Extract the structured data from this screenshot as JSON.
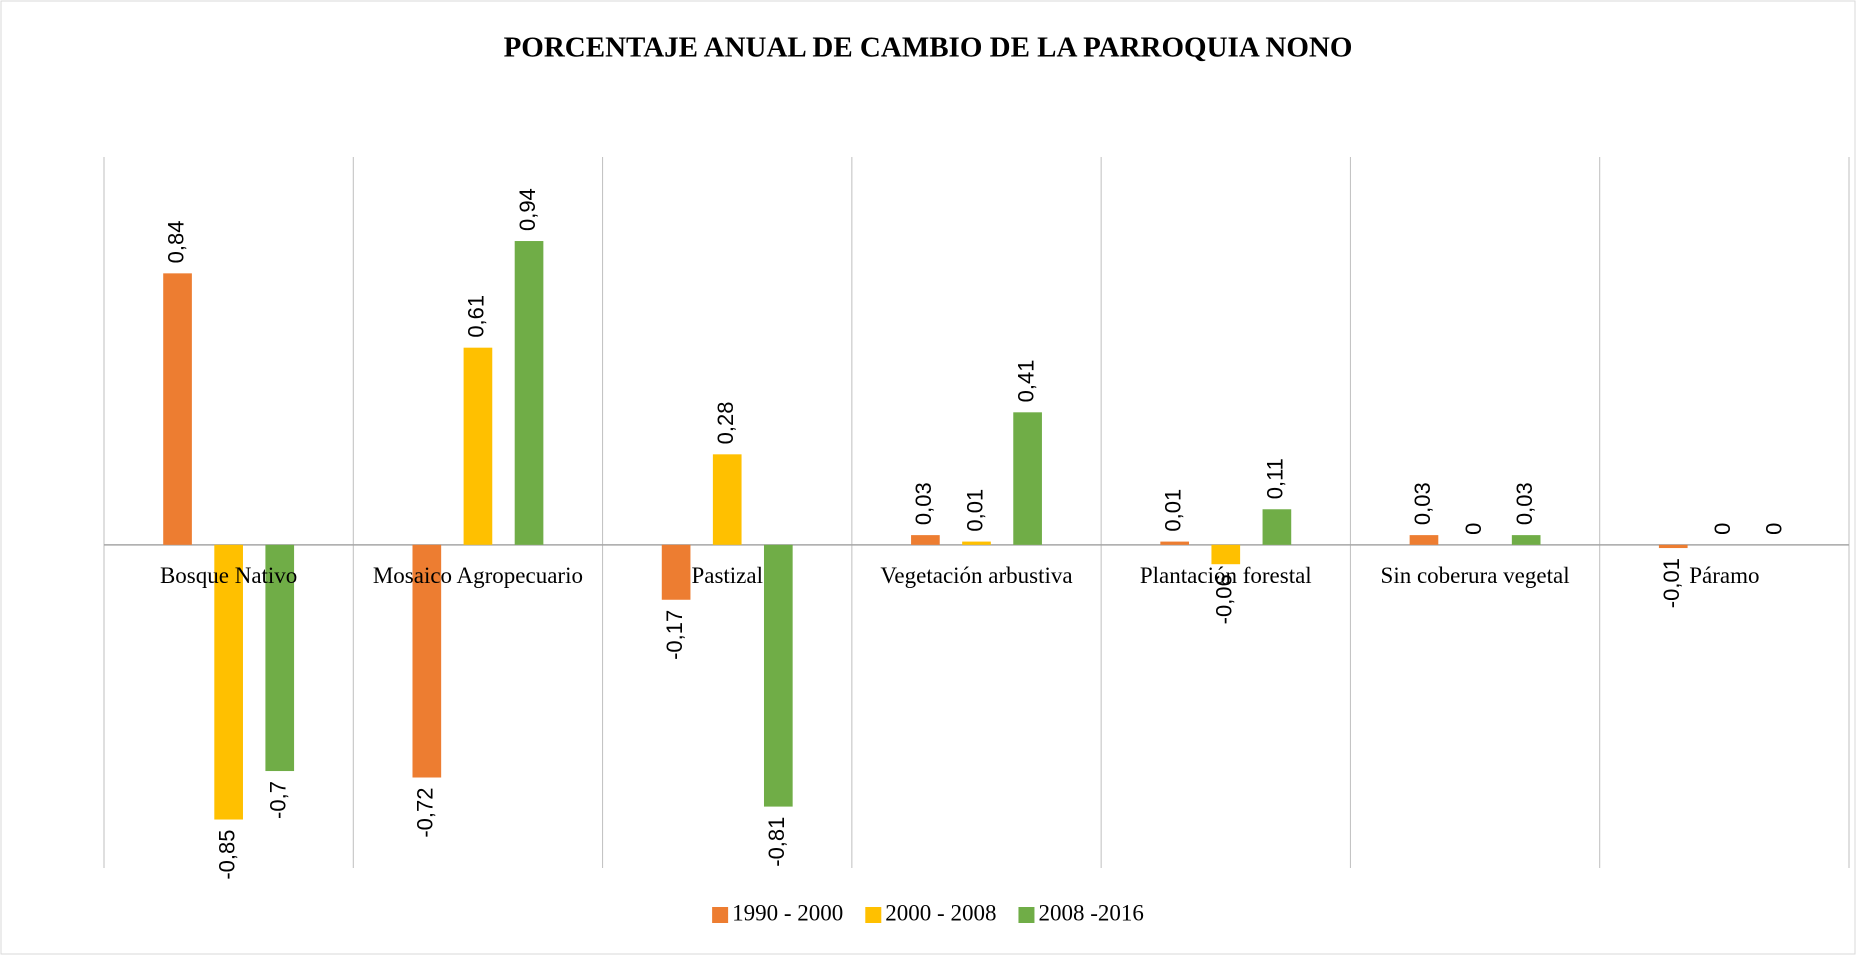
{
  "chart_data": {
    "type": "bar",
    "title": "PORCENTAJE  ANUAL DE CAMBIO DE LA PARROQUIA NONO",
    "categories": [
      "Bosque Nativo",
      "Mosaico Agropecuario",
      "Pastizal",
      "Vegetación arbustiva",
      "Plantación forestal",
      "Sin coberura vegetal",
      "Páramo"
    ],
    "series": [
      {
        "name": "1990 - 2000",
        "color": "#ED7D31",
        "values": [
          0.84,
          -0.72,
          -0.17,
          0.03,
          0.01,
          0.03,
          -0.01
        ],
        "value_labels": [
          "0,84",
          "-0,72",
          "-0,17",
          "0,03",
          "0,01",
          "0,03",
          "-0,01"
        ]
      },
      {
        "name": "2000 - 2008",
        "color": "#FFC000",
        "values": [
          -0.85,
          0.61,
          0.28,
          0.01,
          -0.06,
          0,
          0
        ],
        "value_labels": [
          "-0,85",
          "0,61",
          "0,28",
          "0,01",
          "-0,06",
          "0",
          "0"
        ]
      },
      {
        "name": "2008 -2016",
        "color": "#70AD47",
        "values": [
          -0.7,
          0.94,
          -0.81,
          0.41,
          0.11,
          0.03,
          0
        ],
        "value_labels": [
          "-0,7",
          "0,94",
          "-0,81",
          "0,41",
          "0,11",
          "0,03",
          "0"
        ]
      }
    ],
    "ylim": [
      -1,
      1.2
    ],
    "legend": "bottom"
  }
}
